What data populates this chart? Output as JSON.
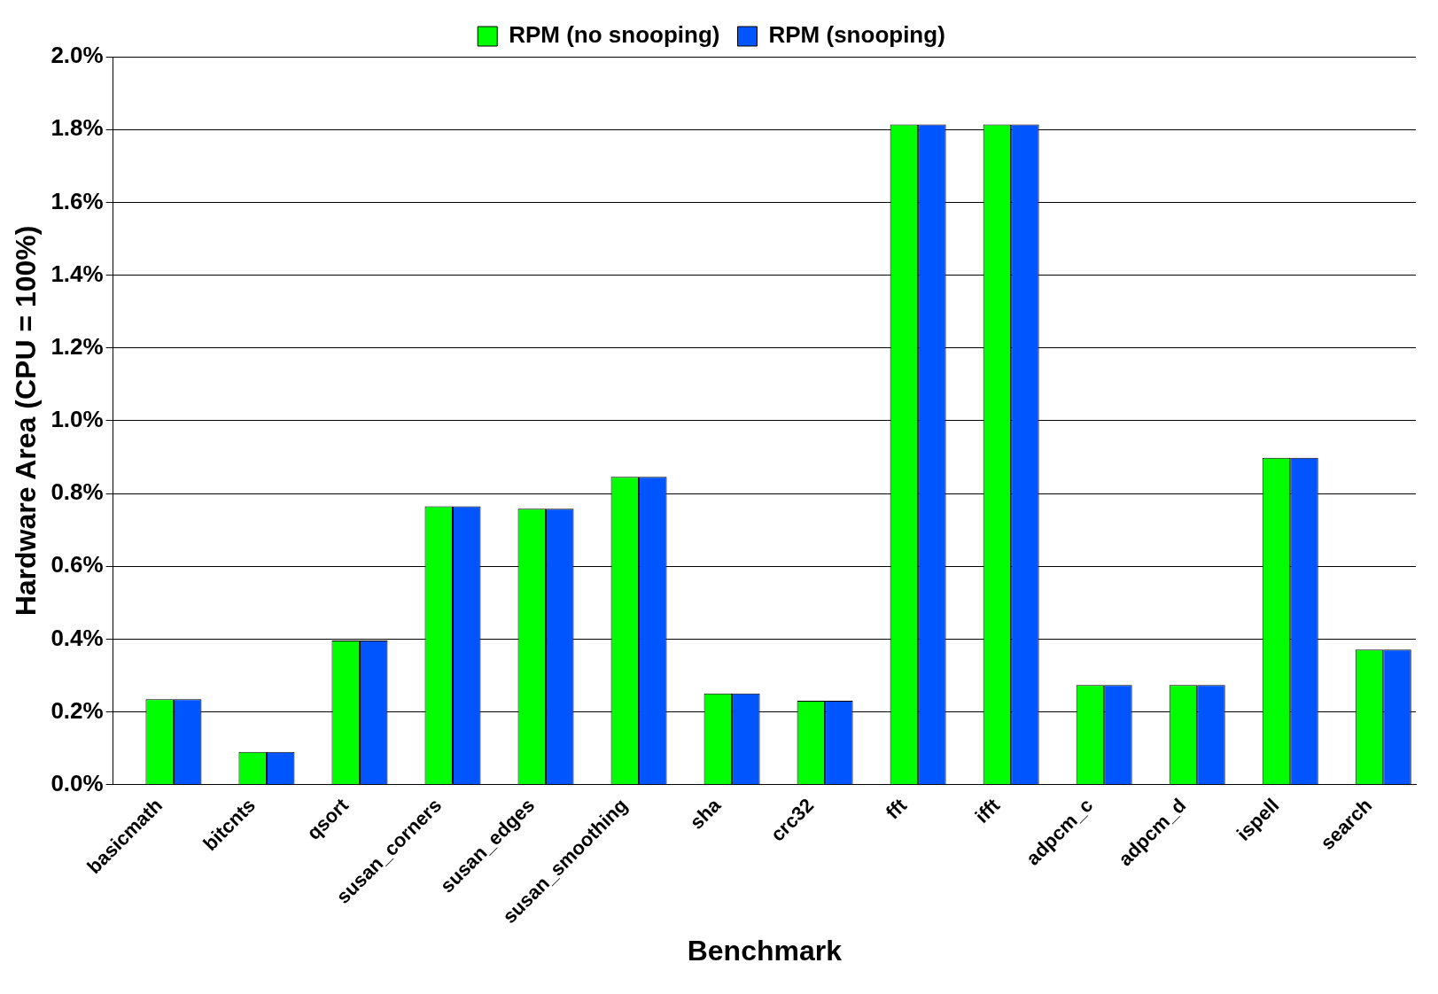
{
  "chart_data": {
    "type": "bar",
    "xlabel": "Benchmark",
    "ylabel": "Hardware Area (CPU = 100%)",
    "categories": [
      "basicmath",
      "bitcnts",
      "qsort",
      "susan_corners",
      "susan_edges",
      "susan_smoothing",
      "sha",
      "crc32",
      "fft",
      "ifft",
      "adpcm_c",
      "adpcm_d",
      "ispell",
      "search"
    ],
    "series": [
      {
        "values": [
          null,
          null,
          null,
          null,
          null,
          null,
          null,
          null,
          null,
          null,
          null,
          null,
          null,
          null
        ]
      },
      {
        "name": "RPM (no snooping)",
        "color": "#00ff00",
        "values": [
          0.235,
          0.09,
          0.396,
          0.765,
          0.758,
          0.846,
          0.251,
          0.231,
          1.814,
          1.814,
          0.274,
          0.274,
          0.898,
          0.371
        ]
      },
      {
        "name": "RPM (snooping)",
        "color": "#0055ff",
        "values": [
          0.235,
          0.09,
          0.396,
          0.765,
          0.758,
          0.846,
          0.251,
          0.231,
          1.814,
          1.814,
          0.274,
          0.274,
          0.898,
          0.371
        ]
      }
    ],
    "ylim": [
      0,
      2
    ],
    "yticks": [
      {
        "value": 0,
        "label": "0.0%"
      },
      {
        "value": 0.2,
        "label": "0.2%"
      },
      {
        "value": 0.4,
        "label": "0.4%"
      },
      {
        "value": 0.6,
        "label": "0.6%"
      },
      {
        "value": 0.8,
        "label": "0.8%"
      },
      {
        "value": 1,
        "label": "1.0%"
      },
      {
        "value": 1.2,
        "label": "1.2%"
      },
      {
        "value": 1.4,
        "label": "1.4%"
      },
      {
        "value": 1.6,
        "label": "1.6%"
      },
      {
        "value": 1.8,
        "label": "1.8%"
      },
      {
        "value": 2,
        "label": "2.0%"
      }
    ],
    "grid": "y",
    "legend": "top"
  }
}
